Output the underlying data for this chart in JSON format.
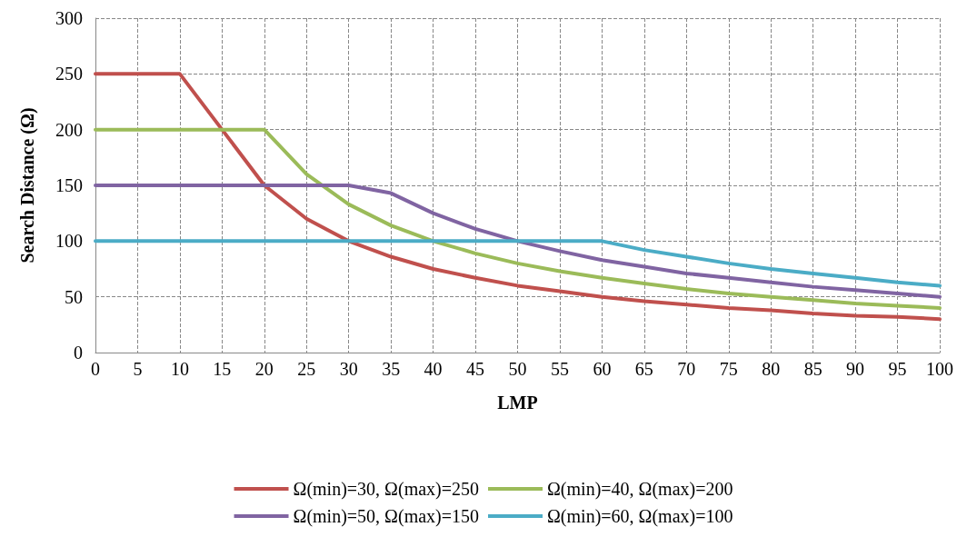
{
  "chart_data": {
    "type": "line",
    "xlabel": "LMP",
    "ylabel": "Search Distance (Ω)",
    "x": [
      0,
      5,
      10,
      15,
      20,
      25,
      30,
      35,
      40,
      45,
      50,
      55,
      60,
      65,
      70,
      75,
      80,
      85,
      90,
      95,
      100
    ],
    "xlim": [
      0,
      100
    ],
    "xticks": [
      0,
      5,
      10,
      15,
      20,
      25,
      30,
      35,
      40,
      45,
      50,
      55,
      60,
      65,
      70,
      75,
      80,
      85,
      90,
      95,
      100
    ],
    "ylim": [
      0,
      300
    ],
    "yticks": [
      0,
      50,
      100,
      150,
      200,
      250,
      300
    ],
    "grid": true,
    "legend": "bottom",
    "marker": "none",
    "line_style": "solid",
    "series": [
      {
        "name": "Ω(min)=30, Ω(max)=250",
        "color": "#c0504d",
        "values": [
          250,
          250,
          250,
          200,
          150,
          120,
          100,
          86,
          75,
          67,
          60,
          55,
          50,
          46,
          43,
          40,
          38,
          35,
          33,
          32,
          30
        ]
      },
      {
        "name": "Ω(min)=40, Ω(max)=200",
        "color": "#9bbb59",
        "values": [
          200,
          200,
          200,
          200,
          200,
          160,
          133,
          114,
          100,
          89,
          80,
          73,
          67,
          62,
          57,
          53,
          50,
          47,
          44,
          42,
          40
        ]
      },
      {
        "name": "Ω(min)=50, Ω(max)=150",
        "color": "#8064a2",
        "values": [
          150,
          150,
          150,
          150,
          150,
          150,
          150,
          143,
          125,
          111,
          100,
          91,
          83,
          77,
          71,
          67,
          63,
          59,
          56,
          53,
          50
        ]
      },
      {
        "name": "Ω(min)=60, Ω(max)=100",
        "color": "#4bacc6",
        "values": [
          100,
          100,
          100,
          100,
          100,
          100,
          100,
          100,
          100,
          100,
          100,
          100,
          100,
          92,
          86,
          80,
          75,
          71,
          67,
          63,
          60
        ]
      }
    ]
  }
}
